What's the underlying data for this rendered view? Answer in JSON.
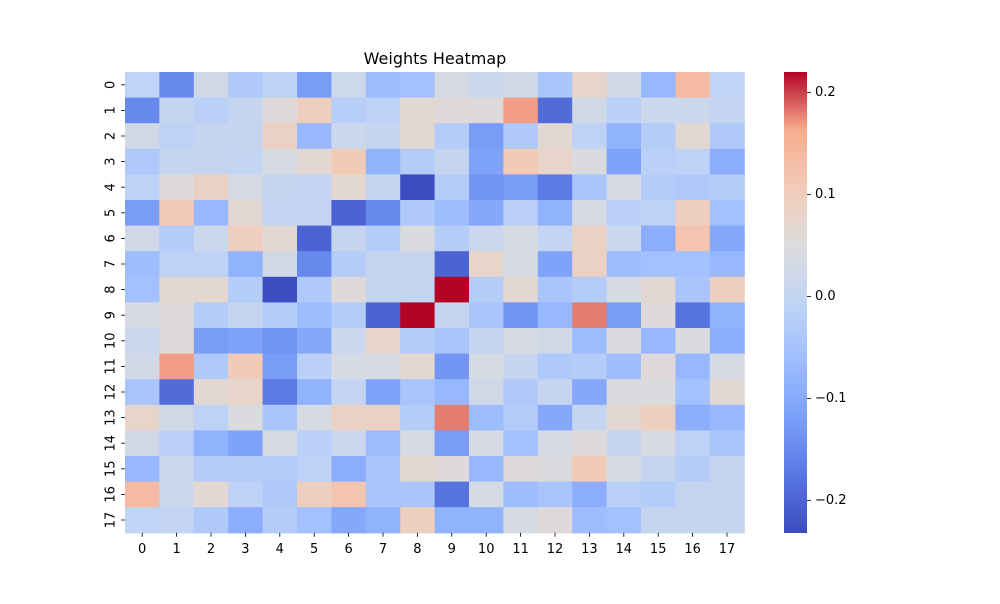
{
  "chart_data": {
    "type": "heatmap",
    "title": "Weights Heatmap",
    "xlabel": "",
    "ylabel": "",
    "x_categories": [
      "0",
      "1",
      "2",
      "3",
      "4",
      "5",
      "6",
      "7",
      "8",
      "9",
      "10",
      "11",
      "12",
      "13",
      "14",
      "15",
      "16",
      "17"
    ],
    "y_categories": [
      "0",
      "1",
      "2",
      "3",
      "4",
      "5",
      "6",
      "7",
      "8",
      "9",
      "10",
      "11",
      "12",
      "13",
      "14",
      "15",
      "16",
      "17"
    ],
    "colormap": "coolwarm",
    "vmin": -0.232,
    "vmax": 0.22,
    "colorbar_ticks": [
      0.2,
      0.1,
      0.0,
      -0.1,
      -0.2
    ],
    "colorbar_tick_labels": [
      "0.2",
      "0.1",
      "0.0",
      "−0.1",
      "−0.2"
    ],
    "values": [
      [
        0.0,
        -0.15,
        0.03,
        -0.03,
        -0.005,
        -0.12,
        0.025,
        -0.06,
        -0.05,
        0.04,
        0.02,
        0.03,
        -0.04,
        0.08,
        0.03,
        -0.07,
        0.14,
        0.0
      ],
      [
        -0.15,
        0.01,
        -0.01,
        0.01,
        0.06,
        0.1,
        -0.015,
        -0.005,
        0.07,
        0.06,
        0.06,
        0.17,
        -0.19,
        0.03,
        -0.01,
        0.02,
        0.02,
        0.005
      ],
      [
        0.03,
        -0.005,
        0.01,
        0.01,
        0.09,
        -0.07,
        0.02,
        0.01,
        0.07,
        -0.02,
        -0.12,
        -0.03,
        0.07,
        -0.005,
        -0.08,
        -0.02,
        0.07,
        -0.03
      ],
      [
        -0.03,
        0.01,
        0.01,
        0.005,
        0.04,
        0.07,
        0.11,
        -0.08,
        -0.02,
        0.01,
        -0.11,
        0.11,
        0.08,
        0.05,
        -0.11,
        -0.01,
        -0.005,
        -0.09
      ],
      [
        -0.005,
        0.06,
        0.09,
        0.04,
        0.01,
        0.005,
        0.07,
        0.01,
        -0.23,
        -0.02,
        -0.13,
        -0.12,
        -0.17,
        -0.04,
        0.04,
        -0.02,
        -0.03,
        -0.02
      ],
      [
        -0.12,
        0.11,
        -0.07,
        0.07,
        0.005,
        0.005,
        -0.2,
        -0.15,
        -0.03,
        -0.06,
        -0.1,
        -0.01,
        -0.08,
        0.04,
        -0.01,
        -0.005,
        0.1,
        -0.05
      ],
      [
        0.03,
        -0.02,
        0.02,
        0.1,
        0.07,
        -0.2,
        0.01,
        -0.02,
        0.05,
        -0.02,
        0.02,
        0.04,
        0.005,
        0.09,
        0.02,
        -0.09,
        0.12,
        -0.1
      ],
      [
        -0.06,
        -0.005,
        -0.005,
        -0.08,
        0.03,
        -0.15,
        -0.02,
        0.01,
        0.01,
        -0.2,
        0.08,
        0.04,
        -0.11,
        0.09,
        -0.06,
        -0.05,
        -0.05,
        -0.07
      ],
      [
        -0.05,
        0.07,
        0.07,
        -0.02,
        -0.23,
        -0.03,
        0.06,
        0.01,
        0.01,
        0.22,
        -0.02,
        0.07,
        -0.04,
        -0.02,
        0.04,
        0.07,
        -0.04,
        0.1
      ],
      [
        0.04,
        0.06,
        -0.02,
        0.01,
        -0.02,
        -0.06,
        -0.02,
        -0.2,
        0.22,
        0.01,
        -0.04,
        -0.13,
        -0.07,
        0.18,
        -0.12,
        0.06,
        -0.18,
        -0.08
      ],
      [
        0.02,
        0.06,
        -0.12,
        -0.11,
        -0.13,
        -0.1,
        0.02,
        0.08,
        -0.02,
        -0.04,
        0.01,
        0.04,
        0.03,
        -0.06,
        0.05,
        -0.07,
        0.05,
        -0.09
      ],
      [
        0.03,
        0.17,
        -0.03,
        0.11,
        -0.12,
        -0.01,
        0.04,
        0.04,
        0.07,
        -0.13,
        0.04,
        0.01,
        -0.03,
        -0.02,
        -0.06,
        0.06,
        -0.07,
        0.04
      ],
      [
        -0.04,
        -0.19,
        0.07,
        0.08,
        -0.17,
        -0.08,
        0.005,
        -0.11,
        -0.04,
        -0.07,
        0.03,
        -0.03,
        0.01,
        -0.1,
        0.05,
        0.05,
        -0.05,
        0.07
      ],
      [
        0.08,
        0.03,
        -0.005,
        0.05,
        -0.04,
        0.04,
        0.09,
        0.09,
        -0.02,
        0.18,
        -0.06,
        -0.02,
        -0.1,
        0.01,
        0.07,
        0.1,
        -0.09,
        -0.07
      ],
      [
        0.03,
        -0.01,
        -0.08,
        -0.11,
        0.04,
        -0.01,
        0.02,
        -0.06,
        0.04,
        -0.12,
        0.04,
        -0.05,
        0.04,
        0.06,
        0.01,
        0.04,
        -0.005,
        -0.04
      ],
      [
        -0.07,
        0.02,
        -0.02,
        -0.02,
        -0.02,
        -0.005,
        -0.09,
        -0.04,
        0.07,
        0.06,
        -0.07,
        0.06,
        0.05,
        0.11,
        0.04,
        0.01,
        -0.02,
        0.01
      ],
      [
        0.14,
        0.02,
        0.07,
        -0.005,
        -0.03,
        0.1,
        0.12,
        -0.04,
        -0.04,
        -0.18,
        0.04,
        -0.06,
        -0.04,
        -0.09,
        -0.01,
        -0.02,
        0.01,
        0.01
      ],
      [
        0.0,
        0.005,
        -0.03,
        -0.09,
        -0.02,
        -0.05,
        -0.1,
        -0.08,
        0.1,
        -0.08,
        -0.08,
        0.04,
        0.06,
        -0.06,
        -0.05,
        0.01,
        0.01,
        0.01
      ]
    ],
    "grid": false,
    "legend": "colorbar-right"
  }
}
